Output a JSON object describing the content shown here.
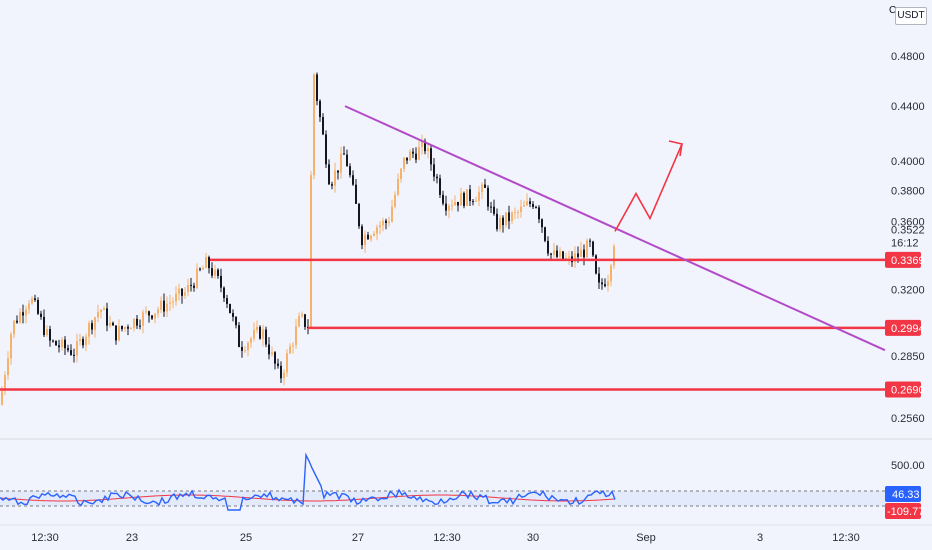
{
  "quote_currency": "USDT",
  "corner_glyph": "C",
  "price_axis": {
    "ticks": [
      "0.4800",
      "0.4400",
      "0.4000",
      "0.3800",
      "0.3600",
      "0.3200",
      "0.2850",
      "0.2560"
    ],
    "current_price": "0.3522",
    "countdown": "16:12"
  },
  "levels": [
    {
      "label": "0.3369",
      "value": 0.3369
    },
    {
      "label": "0.2994",
      "value": 0.2994
    },
    {
      "label": "0.2690",
      "value": 0.269
    }
  ],
  "x_axis_labels": [
    "12:30",
    "23",
    "25",
    "27",
    "12:30",
    "30",
    "Sep",
    "3",
    "12:30"
  ],
  "oscillator": {
    "ticks": [
      "500.00"
    ],
    "value_label": "46.33",
    "signal_label": "-109.77"
  },
  "colors": {
    "background": "#f1f3fd",
    "bull_candle": "#f6b26b",
    "bear_candle": "#131722",
    "level_line": "#f23645",
    "trendline": "#b24bc7",
    "forecast_arrow": "#f23645",
    "oscillator_line": "#2962ff",
    "oscillator_signal": "#f23645",
    "label_bg_red": "#f23645",
    "label_bg_blue": "#2962ff"
  },
  "chart_data": {
    "type": "candlestick",
    "y_scale": "log",
    "ylim": [
      0.248,
      0.5
    ],
    "trendline": {
      "from_price": 0.44,
      "to_price": 0.288
    },
    "forecast_path_prices": [
      0.354,
      0.378,
      0.362,
      0.412
    ]
  }
}
